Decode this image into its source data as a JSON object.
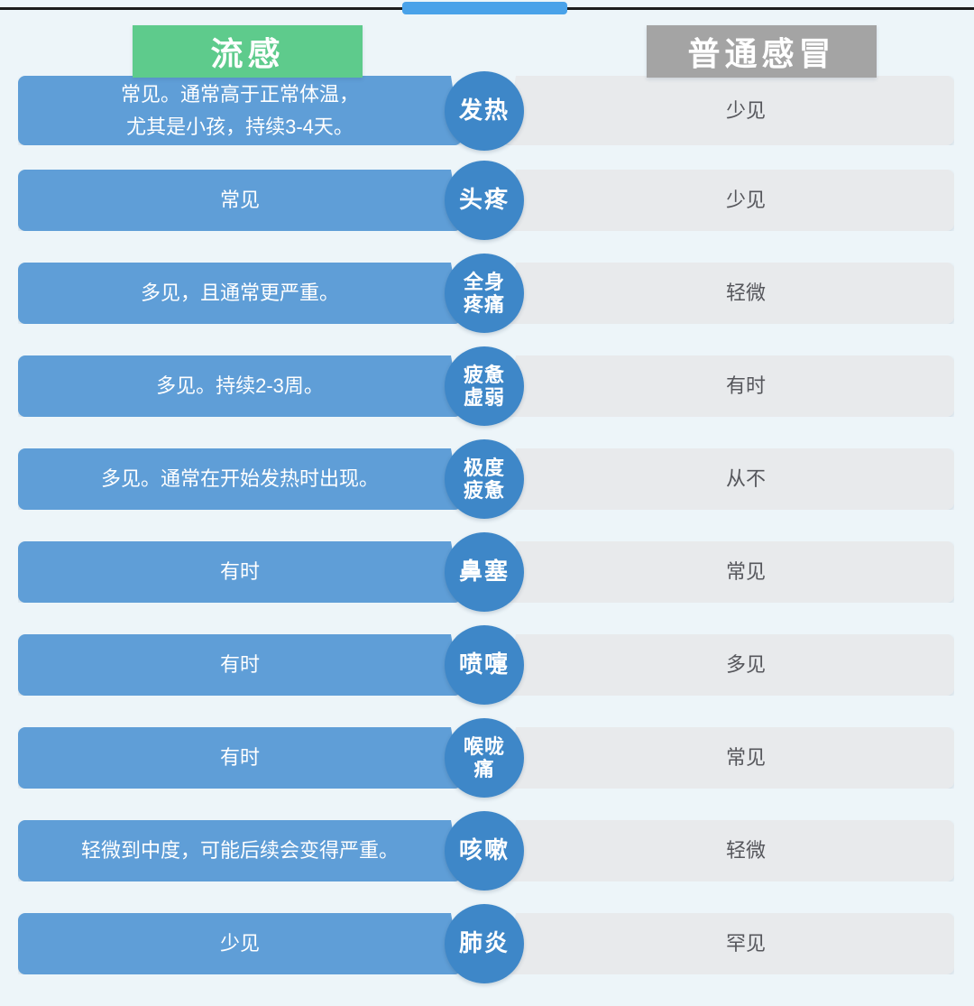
{
  "header": {
    "flu_label": "流感",
    "cold_label": "普通感冒"
  },
  "colors": {
    "background": "#edf5f9",
    "top_line": "#1c1c1c",
    "top_accent": "#49a2e9",
    "flu_header": "#5ecb8c",
    "cold_header": "#a4a4a4",
    "flu_bar": "#5f9ed7",
    "symptom_circle": "#3e87c8",
    "cold_bar": "#e8eaec",
    "cold_text": "#56575c"
  },
  "display": {
    "rows": [
      {
        "symptom": "发热",
        "flu": "常见。通常高于正常体温，\n尤其是小孩，持续3-4天。",
        "cold": "少见"
      },
      {
        "symptom": "头疼",
        "flu": "常见",
        "cold": "少见"
      },
      {
        "symptom": "全身\n疼痛",
        "flu": "多见，且通常更严重。",
        "cold": "轻微"
      },
      {
        "symptom": "疲惫\n虚弱",
        "flu": "多见。持续2-3周。",
        "cold": "有时"
      },
      {
        "symptom": "极度\n疲惫",
        "flu": "多见。通常在开始发热时出现。",
        "cold": "从不"
      },
      {
        "symptom": "鼻塞",
        "flu": "有时",
        "cold": "常见"
      },
      {
        "symptom": "喷嚏",
        "flu": "有时",
        "cold": "多见"
      },
      {
        "symptom": "喉咙\n痛",
        "flu": "有时",
        "cold": "常见"
      },
      {
        "symptom": "咳嗽",
        "flu": "轻微到中度，可能后续会变得严重。",
        "cold": "轻微"
      },
      {
        "symptom": "肺炎",
        "flu": "少见",
        "cold": "罕见"
      }
    ]
  },
  "chart_data": {
    "type": "table",
    "columns": [
      "流感",
      "症状",
      "普通感冒"
    ],
    "rows": [
      {
        "symptom": "发热",
        "flu": "常见。通常高于正常体温，尤其是小孩，持续3-4天。",
        "cold": "少见"
      },
      {
        "symptom": "头疼",
        "flu": "常见",
        "cold": "少见"
      },
      {
        "symptom": "全身疼痛",
        "flu": "多见，且通常更严重。",
        "cold": "轻微"
      },
      {
        "symptom": "疲惫虚弱",
        "flu": "多见。持续2-3周。",
        "cold": "有时"
      },
      {
        "symptom": "极度疲惫",
        "flu": "多见。通常在开始发热时出现。",
        "cold": "从不"
      },
      {
        "symptom": "鼻塞",
        "flu": "有时",
        "cold": "常见"
      },
      {
        "symptom": "喷嚏",
        "flu": "有时",
        "cold": "多见"
      },
      {
        "symptom": "喉咙痛",
        "flu": "有时",
        "cold": "常见"
      },
      {
        "symptom": "咳嗽",
        "flu": "轻微到中度，可能后续会变得严重。",
        "cold": "轻微"
      },
      {
        "symptom": "肺炎",
        "flu": "少见",
        "cold": "罕见"
      }
    ]
  }
}
